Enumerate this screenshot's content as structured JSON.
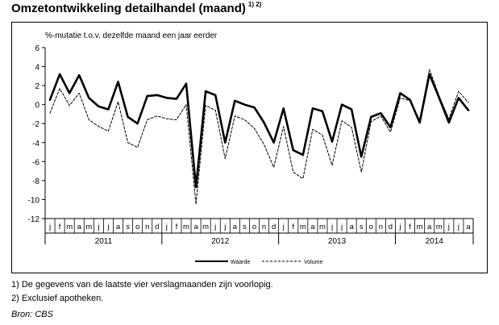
{
  "header": {
    "title": "Omzetontwikkeling detailhandel (maand)",
    "title_footnote_refs": "1) 2)"
  },
  "footnotes": [
    "1) De gegevens van de laatste vier verslagmaanden zijn voorlopig.",
    "2) Exclusief apotheken."
  ],
  "source": "Bron: CBS",
  "chart_data": {
    "type": "line",
    "ylabel": "%-mutatie t.o.v. dezelfde maand een jaar eerder",
    "ylim": [
      -12,
      6
    ],
    "yticks": [
      6,
      4,
      2,
      0,
      -2,
      -4,
      -6,
      -8,
      -10,
      -12
    ],
    "grid": false,
    "month_labels": [
      "j",
      "f",
      "m",
      "a",
      "m",
      "j",
      "j",
      "a",
      "s",
      "o",
      "n",
      "d",
      "j",
      "f",
      "m",
      "a",
      "m",
      "j",
      "j",
      "a",
      "s",
      "o",
      "n",
      "d",
      "j",
      "f",
      "m",
      "a",
      "m",
      "j",
      "j",
      "a",
      "s",
      "o",
      "n",
      "d",
      "j",
      "f",
      "m",
      "a",
      "m",
      "j",
      "j",
      "a"
    ],
    "years": [
      {
        "label": "2011",
        "start": 0,
        "count": 12
      },
      {
        "label": "2012",
        "start": 12,
        "count": 12
      },
      {
        "label": "2013",
        "start": 24,
        "count": 12
      },
      {
        "label": "2014",
        "start": 36,
        "count": 8
      }
    ],
    "legend_position": "bottom-center",
    "series": [
      {
        "name": "Waarde",
        "style": "solid-thick",
        "color": "#000000",
        "values": [
          0.5,
          3.2,
          1.2,
          3.1,
          0.7,
          -0.2,
          -0.5,
          2.4,
          -1.3,
          -2.0,
          0.9,
          1.0,
          0.7,
          0.6,
          2.2,
          -8.7,
          1.4,
          1.0,
          -4.0,
          0.4,
          0.0,
          -0.3,
          -1.9,
          -4.0,
          -0.4,
          -4.8,
          -5.3,
          -0.4,
          -0.7,
          -3.9,
          0.0,
          -0.5,
          -5.5,
          -1.3,
          -0.9,
          -2.4,
          1.2,
          0.5,
          -1.9,
          3.2,
          0.7,
          -1.9,
          0.7,
          -0.6
        ]
      },
      {
        "name": "Volume",
        "style": "dashed",
        "color": "#000000",
        "values": [
          -0.9,
          1.7,
          -0.1,
          1.2,
          -1.6,
          -2.3,
          -2.8,
          0.3,
          -4.0,
          -4.5,
          -1.6,
          -1.2,
          -1.5,
          -1.6,
          0.0,
          -10.5,
          -0.1,
          -0.6,
          -5.7,
          -1.2,
          -1.6,
          -2.5,
          -4.2,
          -6.6,
          -2.3,
          -7.1,
          -7.8,
          -2.6,
          -3.2,
          -6.4,
          -1.7,
          -2.4,
          -7.1,
          -1.8,
          -1.2,
          -2.9,
          0.7,
          0.4,
          -1.6,
          3.7,
          0.9,
          -1.5,
          1.4,
          0.2
        ]
      }
    ]
  }
}
